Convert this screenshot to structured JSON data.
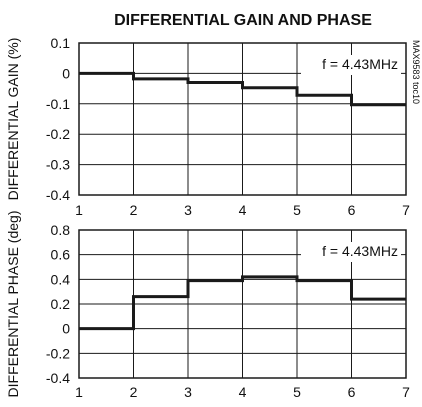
{
  "title": "DIFFERENTIAL GAIN AND PHASE",
  "side_label": "MAX9583 toc10",
  "chart_data": [
    {
      "type": "line",
      "step": true,
      "ylabel": "DIFFERENTIAL GAIN (%)",
      "annotation": "f = 4.43MHz",
      "xlim": [
        1,
        7
      ],
      "ylim": [
        -0.4,
        0.1
      ],
      "xticks": [
        1,
        2,
        3,
        4,
        5,
        6,
        7
      ],
      "yticks": [
        0.1,
        0,
        -0.1,
        -0.2,
        -0.3,
        -0.4
      ],
      "ytick_labels": [
        "0.1",
        "0",
        "-0.1",
        "-0.2",
        "-0.3",
        "-0.4"
      ],
      "grid": true,
      "series": [
        {
          "x": [
            1,
            2,
            3,
            4,
            5,
            6
          ],
          "values": [
            0.0,
            -0.018,
            -0.03,
            -0.047,
            -0.072,
            -0.103
          ]
        }
      ]
    },
    {
      "type": "line",
      "step": true,
      "ylabel": "DIFFERENTIAL PHASE (deg)",
      "annotation": "f = 4.43MHz",
      "xlim": [
        1,
        7
      ],
      "ylim": [
        -0.4,
        0.8
      ],
      "xticks": [
        1,
        2,
        3,
        4,
        5,
        6,
        7
      ],
      "yticks": [
        0.8,
        0.6,
        0.4,
        0.2,
        0,
        -0.2,
        -0.4
      ],
      "ytick_labels": [
        "0.8",
        "0.6",
        "0.4",
        "0.2",
        "0",
        "-0.2",
        "-0.4"
      ],
      "grid": true,
      "series": [
        {
          "x": [
            1,
            2,
            3,
            4,
            5,
            6
          ],
          "values": [
            0.0,
            0.26,
            0.39,
            0.42,
            0.39,
            0.24
          ]
        }
      ]
    }
  ],
  "colors": {
    "line": "#1a1a1a",
    "grid": "#1a1a1a",
    "frame": "#1a1a1a"
  }
}
